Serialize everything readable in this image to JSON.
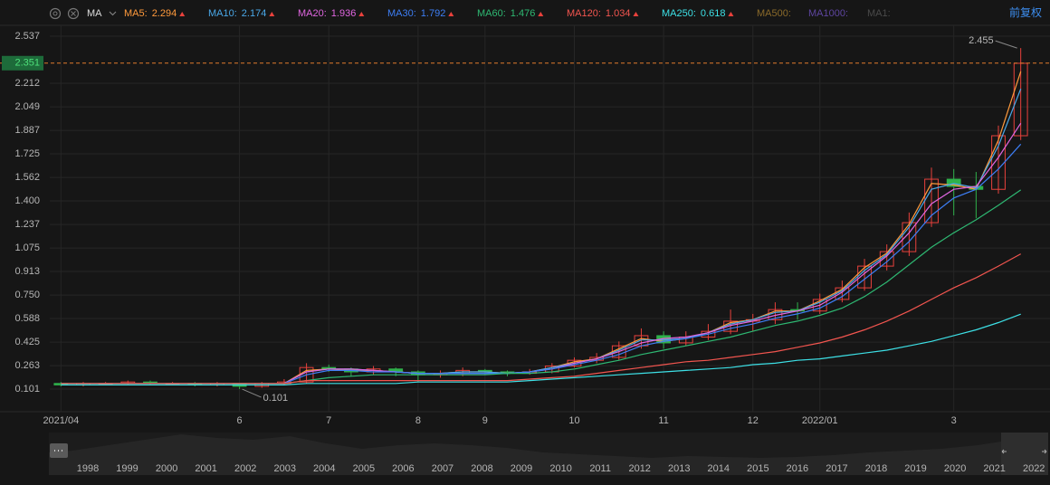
{
  "chart_data": {
    "type": "candlestick",
    "indicator": "MA",
    "adjust_label": "前复权",
    "categories": [
      "2021/04",
      null,
      null,
      null,
      null,
      null,
      null,
      null,
      "6",
      null,
      null,
      null,
      "7",
      null,
      null,
      null,
      "8",
      null,
      null,
      "9",
      null,
      null,
      null,
      "10",
      null,
      null,
      null,
      "11",
      null,
      null,
      null,
      "12",
      null,
      null,
      "2022/01",
      null,
      null,
      null,
      null,
      null,
      "3",
      null,
      null,
      null
    ],
    "open": [
      0.14,
      0.13,
      0.14,
      0.14,
      0.15,
      0.14,
      0.14,
      0.13,
      0.14,
      0.12,
      0.14,
      0.15,
      0.25,
      0.24,
      0.22,
      0.24,
      0.22,
      0.2,
      0.21,
      0.23,
      0.22,
      0.21,
      0.22,
      0.26,
      0.3,
      0.32,
      0.4,
      0.47,
      0.42,
      0.46,
      0.5,
      0.57,
      0.58,
      0.65,
      0.64,
      0.72,
      0.8,
      0.95,
      1.05,
      1.25,
      1.55,
      1.5,
      1.48,
      1.85
    ],
    "high": [
      0.15,
      0.15,
      0.15,
      0.16,
      0.16,
      0.15,
      0.15,
      0.15,
      0.14,
      0.15,
      0.17,
      0.28,
      0.27,
      0.25,
      0.26,
      0.25,
      0.23,
      0.23,
      0.25,
      0.24,
      0.23,
      0.24,
      0.28,
      0.32,
      0.35,
      0.43,
      0.52,
      0.5,
      0.5,
      0.55,
      0.65,
      0.62,
      0.7,
      0.7,
      0.76,
      0.85,
      1.0,
      1.1,
      1.32,
      1.63,
      1.62,
      1.6,
      1.92,
      2.455
    ],
    "low": [
      0.12,
      0.12,
      0.13,
      0.13,
      0.13,
      0.13,
      0.12,
      0.12,
      0.101,
      0.11,
      0.13,
      0.14,
      0.22,
      0.19,
      0.2,
      0.19,
      0.15,
      0.18,
      0.19,
      0.2,
      0.19,
      0.2,
      0.21,
      0.25,
      0.28,
      0.3,
      0.38,
      0.38,
      0.4,
      0.44,
      0.48,
      0.5,
      0.55,
      0.58,
      0.62,
      0.7,
      0.78,
      0.92,
      1.02,
      1.22,
      1.3,
      1.28,
      1.45,
      1.82
    ],
    "close": [
      0.13,
      0.14,
      0.14,
      0.15,
      0.14,
      0.14,
      0.13,
      0.14,
      0.12,
      0.14,
      0.15,
      0.25,
      0.24,
      0.22,
      0.24,
      0.22,
      0.2,
      0.21,
      0.23,
      0.22,
      0.21,
      0.22,
      0.26,
      0.3,
      0.32,
      0.4,
      0.47,
      0.42,
      0.46,
      0.5,
      0.57,
      0.58,
      0.65,
      0.64,
      0.72,
      0.8,
      0.95,
      1.05,
      1.25,
      1.55,
      1.5,
      1.48,
      1.85,
      2.35
    ],
    "up_color": "#e8413c",
    "down_color": "#2fb14b",
    "series": [
      {
        "name": "MA5:",
        "color": "#ff9a3c",
        "values": [
          0.14,
          0.14,
          0.14,
          0.14,
          0.14,
          0.14,
          0.14,
          0.14,
          0.14,
          0.14,
          0.14,
          0.23,
          0.24,
          0.23,
          0.23,
          0.22,
          0.21,
          0.21,
          0.22,
          0.22,
          0.21,
          0.22,
          0.25,
          0.29,
          0.31,
          0.38,
          0.45,
          0.43,
          0.45,
          0.49,
          0.56,
          0.58,
          0.64,
          0.64,
          0.71,
          0.79,
          0.94,
          1.04,
          1.24,
          1.52,
          1.51,
          1.48,
          1.82,
          2.294
        ]
      },
      {
        "name": "MA10:",
        "color": "#4aa8e8",
        "values": [
          0.14,
          0.14,
          0.14,
          0.14,
          0.14,
          0.14,
          0.14,
          0.14,
          0.14,
          0.14,
          0.14,
          0.22,
          0.24,
          0.24,
          0.23,
          0.22,
          0.21,
          0.21,
          0.22,
          0.22,
          0.21,
          0.22,
          0.25,
          0.28,
          0.31,
          0.37,
          0.44,
          0.44,
          0.45,
          0.49,
          0.55,
          0.58,
          0.63,
          0.64,
          0.7,
          0.78,
          0.92,
          1.03,
          1.22,
          1.48,
          1.52,
          1.49,
          1.78,
          2.174
        ]
      },
      {
        "name": "MA20:",
        "color": "#e066e0",
        "values": [
          0.14,
          0.14,
          0.14,
          0.14,
          0.14,
          0.14,
          0.14,
          0.14,
          0.14,
          0.14,
          0.14,
          0.22,
          0.24,
          0.24,
          0.23,
          0.22,
          0.21,
          0.21,
          0.21,
          0.21,
          0.21,
          0.22,
          0.24,
          0.28,
          0.31,
          0.36,
          0.42,
          0.45,
          0.46,
          0.49,
          0.54,
          0.57,
          0.61,
          0.64,
          0.68,
          0.77,
          0.9,
          1.02,
          1.18,
          1.38,
          1.48,
          1.5,
          1.7,
          1.936
        ]
      },
      {
        "name": "MA30:",
        "color": "#3d7ef5",
        "values": [
          0.14,
          0.14,
          0.14,
          0.14,
          0.14,
          0.14,
          0.14,
          0.14,
          0.14,
          0.14,
          0.14,
          0.2,
          0.23,
          0.23,
          0.22,
          0.22,
          0.21,
          0.21,
          0.21,
          0.21,
          0.21,
          0.22,
          0.24,
          0.27,
          0.3,
          0.34,
          0.4,
          0.43,
          0.45,
          0.48,
          0.52,
          0.55,
          0.59,
          0.62,
          0.66,
          0.74,
          0.86,
          0.98,
          1.12,
          1.3,
          1.42,
          1.48,
          1.62,
          1.792
        ]
      },
      {
        "name": "MA60:",
        "color": "#2eb872",
        "values": [
          0.14,
          0.14,
          0.14,
          0.14,
          0.14,
          0.14,
          0.14,
          0.14,
          0.14,
          0.14,
          0.14,
          0.16,
          0.18,
          0.19,
          0.2,
          0.2,
          0.2,
          0.2,
          0.2,
          0.2,
          0.21,
          0.21,
          0.22,
          0.24,
          0.27,
          0.3,
          0.34,
          0.37,
          0.4,
          0.43,
          0.46,
          0.5,
          0.54,
          0.57,
          0.61,
          0.66,
          0.74,
          0.84,
          0.96,
          1.08,
          1.18,
          1.27,
          1.37,
          1.476
        ]
      },
      {
        "name": "MA120:",
        "color": "#f2554f",
        "values": [
          0.14,
          0.14,
          0.14,
          0.14,
          0.14,
          0.14,
          0.14,
          0.14,
          0.14,
          0.14,
          0.14,
          0.16,
          0.16,
          0.16,
          0.16,
          0.16,
          0.16,
          0.16,
          0.16,
          0.16,
          0.16,
          0.17,
          0.18,
          0.19,
          0.21,
          0.23,
          0.25,
          0.27,
          0.29,
          0.3,
          0.32,
          0.34,
          0.36,
          0.39,
          0.42,
          0.46,
          0.51,
          0.57,
          0.64,
          0.72,
          0.8,
          0.87,
          0.95,
          1.034
        ]
      },
      {
        "name": "MA250:",
        "color": "#3de0e6",
        "values": [
          0.13,
          0.13,
          0.13,
          0.13,
          0.13,
          0.13,
          0.13,
          0.13,
          0.13,
          0.13,
          0.13,
          0.14,
          0.14,
          0.14,
          0.14,
          0.14,
          0.15,
          0.15,
          0.15,
          0.15,
          0.15,
          0.16,
          0.17,
          0.18,
          0.19,
          0.2,
          0.21,
          0.22,
          0.23,
          0.24,
          0.25,
          0.27,
          0.28,
          0.3,
          0.31,
          0.33,
          0.35,
          0.37,
          0.4,
          0.43,
          0.47,
          0.51,
          0.56,
          0.618
        ]
      }
    ],
    "inactive_indicators": [
      {
        "name": "MA500:",
        "color": "#8a6a2a"
      },
      {
        "name": "MA1000:",
        "color": "#5e45a0"
      },
      {
        "name": "MA1:",
        "color": "#4a4a4a"
      }
    ],
    "last_price": 2.351,
    "ylim": [
      -0.055,
      2.612
    ],
    "yticks": [
      2.537,
      2.212,
      2.049,
      1.887,
      1.725,
      1.562,
      {
        "value": 1.4,
        "label": "1.400"
      },
      1.237,
      1.075,
      0.913,
      {
        "value": 0.75,
        "label": "0.750"
      },
      0.588,
      0.425,
      0.263,
      0.101
    ],
    "grid": true,
    "navigator_years": [
      "1998",
      "1999",
      "2000",
      "2001",
      "2002",
      "2003",
      "2004",
      "2005",
      "2006",
      "2007",
      "2008",
      "2009",
      "2010",
      "2011",
      "2012",
      "2013",
      "2014",
      "2015",
      "2016",
      "2017",
      "2018",
      "2019",
      "2020",
      "2021",
      "2022"
    ]
  }
}
